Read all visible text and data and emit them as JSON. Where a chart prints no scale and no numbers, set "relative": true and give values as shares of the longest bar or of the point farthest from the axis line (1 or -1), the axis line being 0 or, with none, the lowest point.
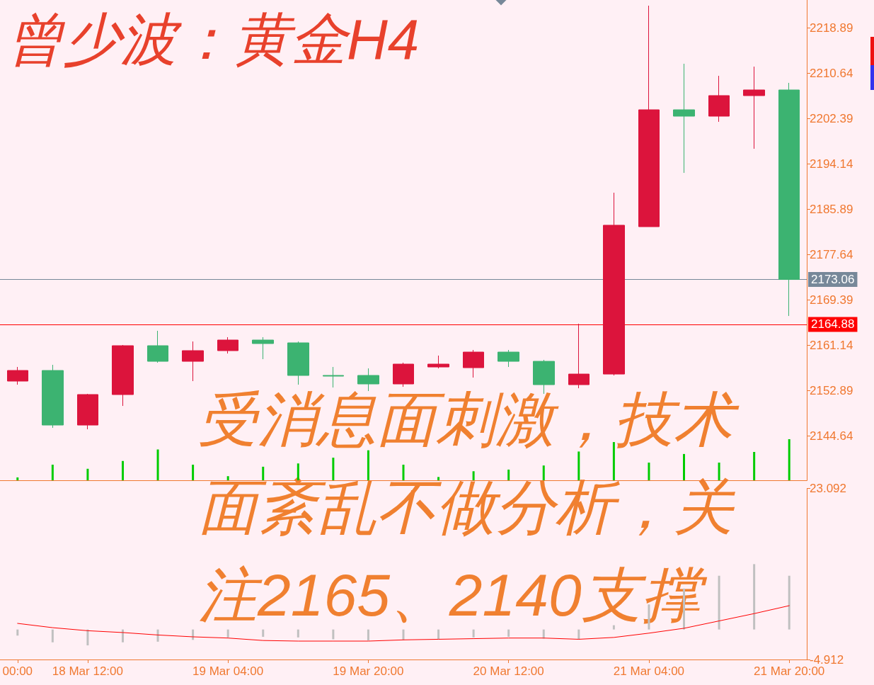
{
  "chart_data": [
    {
      "type": "candlestick",
      "title": "曾少波：黄金H4",
      "annotations": [
        "受消息面刺激，技术面紊乱不做分析，关注2165、2140支撑"
      ],
      "categories": [
        null,
        null,
        null,
        null,
        null,
        null,
        null,
        null,
        null,
        null,
        null,
        null,
        null,
        null,
        null,
        null,
        null,
        null,
        null,
        null,
        null,
        null,
        null
      ],
      "ohlc": [
        [
          2154.57,
          2157.14,
          2153.92,
          2156.5
        ],
        [
          2156.5,
          2157.53,
          2146.06,
          2146.57
        ],
        [
          2146.57,
          2152.25,
          2145.8,
          2152.12
        ],
        [
          2152.12,
          2161.14,
          2150.05,
          2161.01
        ],
        [
          2161.01,
          2163.72,
          2157.92,
          2158.17
        ],
        [
          2158.17,
          2161.78,
          2154.57,
          2160.11
        ],
        [
          2160.11,
          2162.56,
          2159.59,
          2162.04
        ],
        [
          2162.04,
          2162.56,
          2158.56,
          2161.4
        ],
        [
          2161.53,
          2161.78,
          2153.92,
          2155.6
        ],
        [
          2155.6,
          2157.14,
          2153.4,
          2155.47
        ],
        [
          2155.6,
          2156.88,
          2152.76,
          2154.05
        ],
        [
          2154.05,
          2157.92,
          2153.53,
          2157.66
        ],
        [
          2157.14,
          2159.21,
          2156.88,
          2157.66
        ],
        [
          2157.01,
          2160.24,
          2155.21,
          2159.85
        ],
        [
          2159.85,
          2160.24,
          2157.14,
          2158.17
        ],
        [
          2158.17,
          2158.43,
          2152.25,
          2153.92
        ],
        [
          2153.92,
          2165.01,
          2153.27,
          2155.85
        ],
        [
          2155.85,
          2188.85,
          2155.6,
          2182.93
        ],
        [
          2182.67,
          2222.89,
          2182.67,
          2203.94
        ],
        [
          2203.94,
          2212.32,
          2192.46,
          2202.78
        ],
        [
          2202.78,
          2210.12,
          2201.75,
          2206.52
        ],
        [
          2206.52,
          2211.8,
          2196.85,
          2207.55
        ],
        [
          2207.55,
          2208.84,
          2166.42,
          2173.06
        ]
      ],
      "colors": [
        "#dc143c",
        "#3cb371",
        "#dc143c",
        "#dc143c",
        "#3cb371",
        "#dc143c",
        "#dc143c",
        "#3cb371",
        "#3cb371",
        "#3cb371",
        "#3cb371",
        "#dc143c",
        "#dc143c",
        "#dc143c",
        "#3cb371",
        "#3cb371",
        "#dc143c",
        "#dc143c",
        "#dc143c",
        "#3cb371",
        "#dc143c",
        "#dc143c",
        "#3cb371"
      ],
      "ylim": [
        2136.52,
        2223.92
      ],
      "yticks": [
        2144.64,
        2152.89,
        2161.14,
        2169.39,
        2177.64,
        2185.89,
        2194.14,
        2202.39,
        2210.64,
        2218.89
      ],
      "ref_lines": [
        {
          "axis": "y",
          "value": 2173.06,
          "label": "2173.06",
          "color": "#778899"
        },
        {
          "axis": "y",
          "value": 2164.88,
          "label": "2164.88",
          "color": "#ff0000"
        }
      ],
      "tick_labels": "y"
    },
    {
      "type": "bar",
      "relative": true,
      "tick_labels": false,
      "color": "#00cc00",
      "categories": [
        null,
        null,
        null,
        null,
        null,
        null,
        null,
        null,
        null,
        null,
        null,
        null,
        null,
        null,
        null,
        null,
        null,
        null,
        null,
        null,
        null,
        null,
        null
      ],
      "values": [
        0.07,
        0.38,
        0.28,
        0.47,
        0.75,
        0.38,
        0.1,
        0.33,
        0.41,
        0.55,
        0.73,
        0.38,
        0.08,
        0.22,
        0.26,
        0.36,
        0.7,
        0.93,
        0.43,
        0.64,
        0.43,
        0.69,
        1
      ]
    },
    {
      "type": "bar",
      "marker": "none",
      "line_style": "solid",
      "categories": [
        "00:00",
        null,
        "18 Mar 12:00",
        null,
        null,
        null,
        "19 Mar 04:00",
        null,
        null,
        null,
        "19 Mar 20:00",
        null,
        null,
        null,
        "20 Mar 12:00",
        null,
        null,
        null,
        "21 Mar 04:00",
        null,
        null,
        null,
        "21 Mar 20:00"
      ],
      "series": [
        {
          "type": "bar",
          "color": "#c0c0c0",
          "values": [
            -1.0,
            -2.1,
            -2.6,
            -2.1,
            -2.0,
            -1.7,
            -1.3,
            -1.2,
            -1.3,
            -1.6,
            -1.8,
            -1.7,
            -1.6,
            -1.3,
            -1.2,
            -1.5,
            -1.6,
            0.7,
            4.1,
            6.7,
            8.8,
            10.7,
            8.8
          ]
        },
        {
          "type": "line",
          "color": "#ff0000",
          "values": [
            1.0,
            0.3,
            -0.2,
            -0.5,
            -0.9,
            -1.2,
            -1.4,
            -1.8,
            -1.9,
            -1.9,
            -1.9,
            -1.7,
            -1.6,
            -1.5,
            -1.4,
            -1.4,
            -1.6,
            -1.3,
            -0.6,
            0.2,
            1.4,
            2.6,
            3.9
          ]
        }
      ],
      "ylim": [
        -4.912,
        23.092
      ],
      "yticks": [
        -4.912,
        23.092
      ]
    }
  ]
}
